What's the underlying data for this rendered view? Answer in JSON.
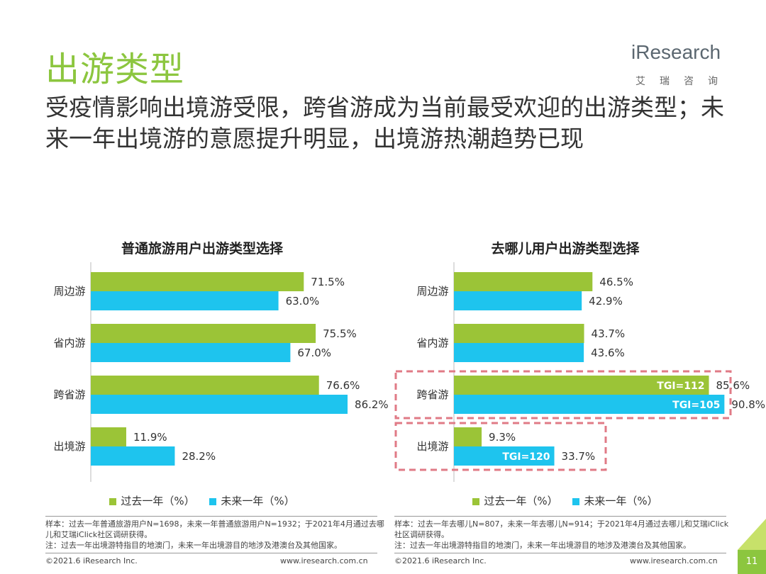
{
  "header": {
    "title": "出游类型",
    "subtitle": "受疫情影响出境游受限，跨省游成为当前最受欢迎的出游类型；未来一年出境游的意愿提升明显，出境游热潮趋势已现",
    "logo_text": "iResearch",
    "logo_sub": "艾瑞咨询"
  },
  "colors": {
    "past": "#9bc437",
    "future": "#1ec4ee",
    "accent": "#8cc63f",
    "highlight_box": "#e07a86"
  },
  "legend": {
    "past": "过去一年（%）",
    "future": "未来一年（%）"
  },
  "chart_data": [
    {
      "type": "bar",
      "orientation": "horizontal",
      "title": "普通旅游用户出游类型选择",
      "categories": [
        "周边游",
        "省内游",
        "跨省游",
        "出境游"
      ],
      "series": [
        {
          "name": "过去一年（%）",
          "values": [
            71.5,
            75.5,
            76.6,
            11.9
          ]
        },
        {
          "name": "未来一年（%）",
          "values": [
            63.0,
            67.0,
            86.2,
            28.2
          ]
        }
      ],
      "xlim": [
        0,
        100
      ],
      "value_labels_past": [
        "71.5%",
        "75.5%",
        "76.6%",
        "11.9%"
      ],
      "value_labels_future": [
        "63.0%",
        "67.0%",
        "86.2%",
        "28.2%"
      ]
    },
    {
      "type": "bar",
      "orientation": "horizontal",
      "title": "去哪儿用户出游类型选择",
      "categories": [
        "周边游",
        "省内游",
        "跨省游",
        "出境游"
      ],
      "series": [
        {
          "name": "过去一年（%）",
          "values": [
            46.5,
            43.7,
            85.6,
            9.3
          ]
        },
        {
          "name": "未来一年（%）",
          "values": [
            42.9,
            43.6,
            90.8,
            33.7
          ]
        }
      ],
      "xlim": [
        0,
        100
      ],
      "value_labels_past": [
        "46.5%",
        "43.7%",
        "85.6%",
        "9.3%"
      ],
      "value_labels_future": [
        "42.9%",
        "43.6%",
        "90.8%",
        "33.7%"
      ],
      "tgi_past": [
        "",
        "",
        "TGI=112",
        ""
      ],
      "tgi_future": [
        "",
        "",
        "TGI=105",
        "TGI=120"
      ],
      "highlighted_categories": [
        "跨省游",
        "出境游"
      ]
    }
  ],
  "notes": {
    "left": "样本：过去一年普通旅游用户N=1698，未来一年普通旅游用户N=1932；于2021年4月通过去哪儿和艾瑞iClick社区调研获得。\n注：过去一年出境游特指目的地澳门，未来一年出境游目的地涉及港澳台及其他国家。",
    "right": "样本：过去一年去哪儿N=807，未来一年去哪儿N=914；于2021年4月通过去哪儿和艾瑞iClick社区调研获得。\n注：过去一年出境游特指目的地澳门，未来一年出境游目的地涉及港澳台及其他国家。"
  },
  "footer": {
    "copyright": "©2021.6 iResearch Inc.",
    "url": "www.iresearch.com.cn",
    "page_number": "11"
  }
}
